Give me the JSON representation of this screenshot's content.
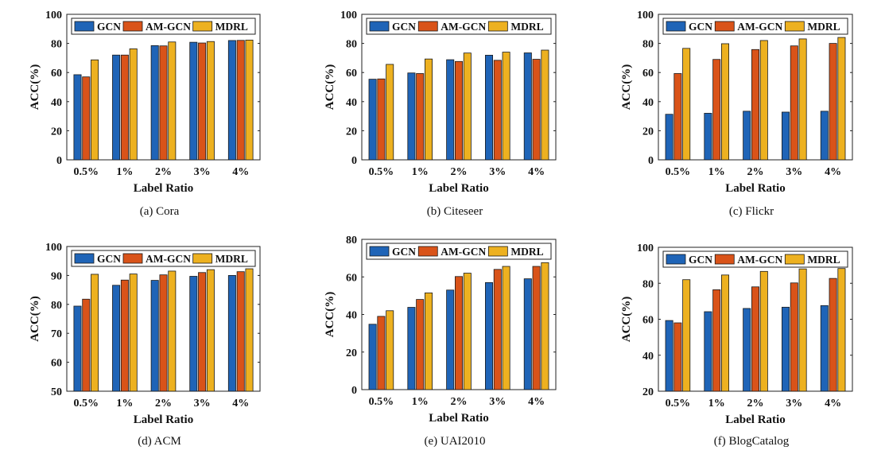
{
  "chart_data": [
    {
      "type": "bar",
      "caption": "(a) Cora",
      "categories": [
        "0.5%",
        "1%",
        "2%",
        "3%",
        "4%"
      ],
      "xlabel": "Label Ratio",
      "ylabel": "ACC(%)",
      "ylim": [
        0,
        100
      ],
      "yticks": [
        0,
        20,
        40,
        60,
        80,
        100
      ],
      "legend": "top",
      "series": [
        {
          "name": "GCN",
          "color": "#1f64b7",
          "values": [
            58.5,
            72.0,
            78.5,
            80.8,
            82.0
          ]
        },
        {
          "name": "AM-GCN",
          "color": "#d95319",
          "values": [
            57.0,
            72.0,
            78.3,
            80.3,
            82.1
          ]
        },
        {
          "name": "MDRL",
          "color": "#edb120",
          "values": [
            68.7,
            76.3,
            81.0,
            81.3,
            82.3
          ]
        }
      ]
    },
    {
      "type": "bar",
      "caption": "(b) Citeseer",
      "categories": [
        "0.5%",
        "1%",
        "2%",
        "3%",
        "4%"
      ],
      "xlabel": "Label Ratio",
      "ylabel": "ACC(%)",
      "ylim": [
        0,
        100
      ],
      "yticks": [
        0,
        20,
        40,
        60,
        80,
        100
      ],
      "legend": "top",
      "series": [
        {
          "name": "GCN",
          "color": "#1f64b7",
          "values": [
            55.4,
            59.7,
            68.8,
            71.9,
            73.5
          ]
        },
        {
          "name": "AM-GCN",
          "color": "#d95319",
          "values": [
            55.6,
            59.3,
            67.6,
            68.4,
            69.1
          ]
        },
        {
          "name": "MDRL",
          "color": "#edb120",
          "values": [
            65.6,
            69.3,
            73.4,
            74.0,
            75.4
          ]
        }
      ]
    },
    {
      "type": "bar",
      "caption": "(c) Flickr",
      "categories": [
        "0.5%",
        "1%",
        "2%",
        "3%",
        "4%"
      ],
      "xlabel": "Label Ratio",
      "ylabel": "ACC(%)",
      "ylim": [
        0,
        100
      ],
      "yticks": [
        0,
        20,
        40,
        60,
        80,
        100
      ],
      "legend": "top",
      "series": [
        {
          "name": "GCN",
          "color": "#1f64b7",
          "values": [
            31.3,
            32.0,
            33.4,
            32.8,
            33.4
          ]
        },
        {
          "name": "AM-GCN",
          "color": "#d95319",
          "values": [
            59.3,
            69.0,
            75.8,
            78.3,
            80.0
          ]
        },
        {
          "name": "MDRL",
          "color": "#edb120",
          "values": [
            76.6,
            79.8,
            82.0,
            83.1,
            84.1
          ]
        }
      ]
    },
    {
      "type": "bar",
      "caption": "(d) ACM",
      "categories": [
        "0.5%",
        "1%",
        "2%",
        "3%",
        "4%"
      ],
      "xlabel": "Label Ratio",
      "ylabel": "ACC(%)",
      "ylim": [
        50,
        100
      ],
      "yticks": [
        50,
        60,
        70,
        80,
        90,
        100
      ],
      "legend": "top",
      "series": [
        {
          "name": "GCN",
          "color": "#1f64b7",
          "values": [
            79.4,
            86.6,
            88.3,
            89.7,
            90.0
          ]
        },
        {
          "name": "AM-GCN",
          "color": "#d95319",
          "values": [
            81.8,
            88.4,
            90.2,
            91.0,
            91.3
          ]
        },
        {
          "name": "MDRL",
          "color": "#edb120",
          "values": [
            90.4,
            90.5,
            91.5,
            92.0,
            92.3
          ]
        }
      ]
    },
    {
      "type": "bar",
      "caption": "(e) UAI2010",
      "categories": [
        "0.5%",
        "1%",
        "2%",
        "3%",
        "4%"
      ],
      "xlabel": "Label Ratio",
      "ylabel": "ACC(%)",
      "ylim": [
        0,
        80
      ],
      "yticks": [
        0,
        20,
        40,
        60,
        80
      ],
      "legend": "top",
      "series": [
        {
          "name": "GCN",
          "color": "#1f64b7",
          "values": [
            34.8,
            43.8,
            53.0,
            57.0,
            59.0
          ]
        },
        {
          "name": "AM-GCN",
          "color": "#d95319",
          "values": [
            39.0,
            48.0,
            60.2,
            64.0,
            65.6
          ]
        },
        {
          "name": "MDRL",
          "color": "#edb120",
          "values": [
            42.0,
            51.5,
            62.0,
            65.6,
            67.6
          ]
        }
      ]
    },
    {
      "type": "bar",
      "caption": "(f) BlogCatalog",
      "categories": [
        "0.5%",
        "1%",
        "2%",
        "3%",
        "4%"
      ],
      "xlabel": "Label Ratio",
      "ylabel": "ACC(%)",
      "ylim": [
        20,
        100
      ],
      "yticks": [
        20,
        40,
        60,
        80,
        100
      ],
      "legend": "top",
      "series": [
        {
          "name": "GCN",
          "color": "#1f64b7",
          "values": [
            59.3,
            64.2,
            66.0,
            66.7,
            67.6
          ]
        },
        {
          "name": "AM-GCN",
          "color": "#d95319",
          "values": [
            58.0,
            76.4,
            78.0,
            80.2,
            82.7
          ]
        },
        {
          "name": "MDRL",
          "color": "#edb120",
          "values": [
            82.0,
            84.6,
            86.6,
            88.0,
            88.2
          ]
        }
      ]
    }
  ]
}
